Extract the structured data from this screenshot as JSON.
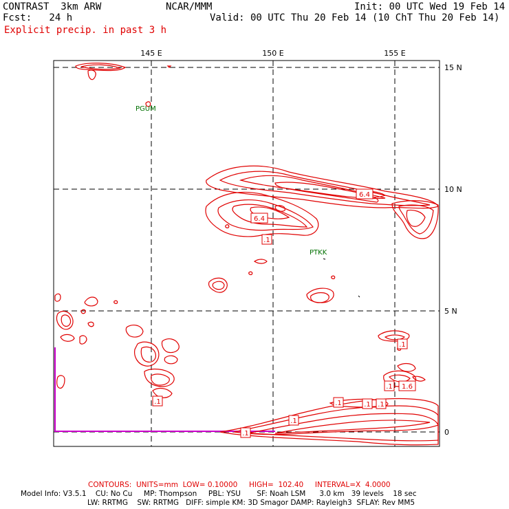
{
  "header": {
    "left_line1": "CONTRAST  3km ARW",
    "center_line1": "NCAR/MMM",
    "right_line1": "Init: 00 UTC Wed 19 Feb 14",
    "left_line2": "Fcst:   24 h",
    "right_line2": "Valid: 00 UTC Thu 20 Feb 14 (10 ChT Thu 20 Feb 14)",
    "field_title": "Explicit precip. in past 3 h"
  },
  "axes": {
    "lon_labels": [
      "145 E",
      "150 E",
      "155 E"
    ],
    "lat_labels": [
      "15 N",
      "10 N",
      "5 N",
      "0"
    ]
  },
  "stations": [
    "PGUM",
    "PTKK"
  ],
  "contour_labels": [
    "6.4",
    "6.4",
    ".1",
    ".1",
    ".1",
    "1.6",
    ".1",
    ".1",
    ".1",
    ".1",
    ".1",
    ".1"
  ],
  "footer": {
    "contours_line": "CONTOURS:  UNITS=mm  LOW= 0.10000     HIGH=  102.40     INTERVAL=X  4.0000",
    "model_line1": "Model Info: V3.5.1    CU: No Cu     MP: Thompson     PBL: YSU       SF: Noah LSM      3.0 km   39 levels    18 sec",
    "model_line2": "LW: RRTMG    SW: RRTMG   DIFF: simple KM: 3D Smagor DAMP: Rayleigh3  SFLAY: Rev MM5"
  },
  "colors": {
    "precip_contour": "#e00000",
    "station": "#007000",
    "boundary": "#cc00cc",
    "grid": "#000000"
  }
}
